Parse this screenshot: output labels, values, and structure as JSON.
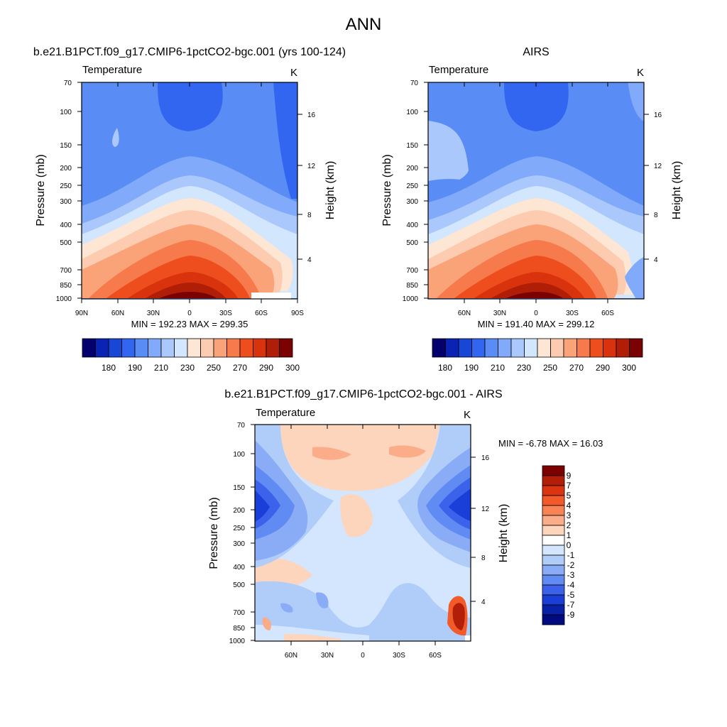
{
  "figure": {
    "title": "ANN"
  },
  "chart_data": [
    {
      "type": "heatmap",
      "title": "b.e21.B1PCT.f09_g17.CMIP6-1pctCO2-bgc.001 (yrs 100-124)",
      "left_label": "Temperature",
      "units": "K",
      "xlabel": "",
      "ylabel": "Pressure (mb)",
      "ylabel_right": "Height (km)",
      "x_ticks": [
        "90N",
        "60N",
        "30N",
        "0",
        "30S",
        "60S",
        "90S"
      ],
      "y_ticks": [
        "70",
        "100",
        "150",
        "200",
        "250",
        "300",
        "400",
        "500",
        "700",
        "850",
        "1000"
      ],
      "y_right_ticks": [
        "4",
        "8",
        "12",
        "16"
      ],
      "stats_label": "MIN = 192.23  MAX = 299.35",
      "min": 192.23,
      "max": 299.35,
      "colorbar_labels": [
        "180",
        "190",
        "210",
        "230",
        "250",
        "270",
        "290",
        "300"
      ],
      "colorbar_colors": [
        "#03006e",
        "#0a23b4",
        "#1847d6",
        "#3366f0",
        "#5a8cf5",
        "#82aafa",
        "#aac8fc",
        "#d2e6fd",
        "#fee6d4",
        "#fccbb0",
        "#faa278",
        "#f67a4c",
        "#ee4e1e",
        "#d8330c",
        "#b01e08",
        "#7a0202"
      ],
      "xlim": [
        90,
        -90
      ],
      "ylim": [
        70,
        1000
      ]
    },
    {
      "type": "heatmap",
      "title": "AIRS",
      "left_label": "Temperature",
      "units": "K",
      "xlabel": "",
      "ylabel": "Pressure (mb)",
      "ylabel_right": "Height (km)",
      "x_ticks": [
        "60N",
        "30N",
        "0",
        "30S",
        "60S"
      ],
      "y_ticks": [
        "70",
        "100",
        "150",
        "200",
        "250",
        "300",
        "400",
        "500",
        "700",
        "850",
        "1000"
      ],
      "y_right_ticks": [
        "4",
        "8",
        "12",
        "16"
      ],
      "stats_label": "MIN = 191.40  MAX = 299.12",
      "min": 191.4,
      "max": 299.12,
      "colorbar_labels": [
        "180",
        "190",
        "210",
        "230",
        "250",
        "270",
        "290",
        "300"
      ],
      "xlim": [
        90,
        -90
      ],
      "ylim": [
        70,
        1000
      ]
    },
    {
      "type": "heatmap",
      "title": "b.e21.B1PCT.f09_g17.CMIP6-1pctCO2-bgc.001 - AIRS",
      "left_label": "Temperature",
      "units": "K",
      "xlabel": "",
      "ylabel": "Pressure (mb)",
      "ylabel_right": "Height (km)",
      "x_ticks": [
        "60N",
        "30N",
        "0",
        "30S",
        "60S"
      ],
      "y_ticks": [
        "70",
        "100",
        "150",
        "200",
        "250",
        "300",
        "400",
        "500",
        "700",
        "850",
        "1000"
      ],
      "y_right_ticks": [
        "4",
        "8",
        "12",
        "16"
      ],
      "stats_label": "MIN =  -6.78  MAX =  16.03",
      "min": -6.78,
      "max": 16.03,
      "colorbar_labels": [
        "9",
        "7",
        "5",
        "4",
        "3",
        "2",
        "1",
        "0",
        "-1",
        "-2",
        "-3",
        "-4",
        "-5",
        "-7",
        "-9"
      ],
      "colorbar_colors": [
        "#7d0000",
        "#b31e08",
        "#dc3410",
        "#f35a2a",
        "#f88456",
        "#fbac88",
        "#fdd4bc",
        "#ffffff",
        "#d4e6fd",
        "#b0cdfa",
        "#8aacf7",
        "#5f8bf2",
        "#3c62ec",
        "#1a3ed8",
        "#0821a8",
        "#020a80"
      ],
      "xlim": [
        90,
        -90
      ],
      "ylim": [
        70,
        1000
      ]
    }
  ]
}
